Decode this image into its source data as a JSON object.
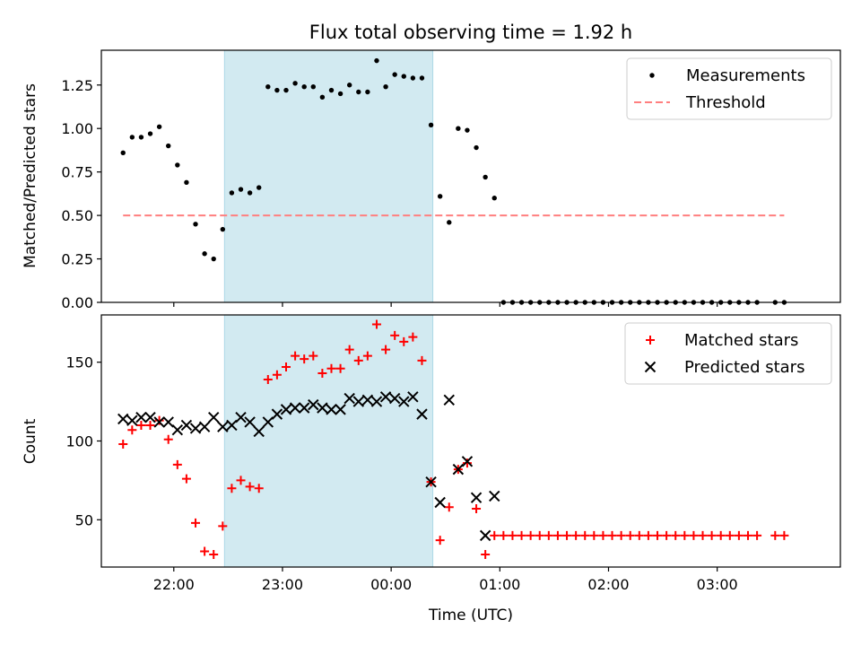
{
  "chart_data": [
    {
      "type": "scatter",
      "title": "Flux total observing time = 1.92 h",
      "ylabel": "Matched/Predicted stars",
      "xlim": [
        "21:20",
        "04:08"
      ],
      "ylim": [
        0,
        1.45
      ],
      "yticks": [
        "0.00",
        "0.25",
        "0.50",
        "0.75",
        "1.00",
        "1.25"
      ],
      "shaded_interval": [
        "22:28",
        "00:23"
      ],
      "shade_color": "#add8e6",
      "legend_position": "top-right",
      "series": [
        {
          "name": "Measurements",
          "marker": "dot",
          "color": "#000000",
          "points": [
            [
              "21:32",
              0.86
            ],
            [
              "21:37",
              0.95
            ],
            [
              "21:42",
              0.95
            ],
            [
              "21:47",
              0.97
            ],
            [
              "21:52",
              1.01
            ],
            [
              "21:57",
              0.9
            ],
            [
              "22:02",
              0.79
            ],
            [
              "22:07",
              0.69
            ],
            [
              "22:12",
              0.45
            ],
            [
              "22:17",
              0.28
            ],
            [
              "22:22",
              0.25
            ],
            [
              "22:27",
              0.42
            ],
            [
              "22:32",
              0.63
            ],
            [
              "22:37",
              0.65
            ],
            [
              "22:42",
              0.63
            ],
            [
              "22:47",
              0.66
            ],
            [
              "22:52",
              1.24
            ],
            [
              "22:57",
              1.22
            ],
            [
              "23:02",
              1.22
            ],
            [
              "23:07",
              1.26
            ],
            [
              "23:12",
              1.24
            ],
            [
              "23:17",
              1.24
            ],
            [
              "23:22",
              1.18
            ],
            [
              "23:27",
              1.22
            ],
            [
              "23:32",
              1.2
            ],
            [
              "23:37",
              1.25
            ],
            [
              "23:42",
              1.21
            ],
            [
              "23:47",
              1.21
            ],
            [
              "23:52",
              1.39
            ],
            [
              "23:57",
              1.24
            ],
            [
              "00:02",
              1.31
            ],
            [
              "00:07",
              1.3
            ],
            [
              "00:12",
              1.29
            ],
            [
              "00:17",
              1.29
            ],
            [
              "00:22",
              1.02
            ],
            [
              "00:27",
              0.61
            ],
            [
              "00:32",
              0.46
            ],
            [
              "00:37",
              1.0
            ],
            [
              "00:42",
              0.99
            ],
            [
              "00:47",
              0.89
            ],
            [
              "00:52",
              0.72
            ],
            [
              "00:57",
              0.6
            ],
            [
              "01:02",
              0
            ],
            [
              "01:07",
              0
            ],
            [
              "01:12",
              0
            ],
            [
              "01:17",
              0
            ],
            [
              "01:22",
              0
            ],
            [
              "01:27",
              0
            ],
            [
              "01:32",
              0
            ],
            [
              "01:37",
              0
            ],
            [
              "01:42",
              0
            ],
            [
              "01:47",
              0
            ],
            [
              "01:52",
              0
            ],
            [
              "01:57",
              0
            ],
            [
              "02:02",
              0
            ],
            [
              "02:07",
              0
            ],
            [
              "02:12",
              0
            ],
            [
              "02:17",
              0
            ],
            [
              "02:22",
              0
            ],
            [
              "02:27",
              0
            ],
            [
              "02:32",
              0
            ],
            [
              "02:37",
              0
            ],
            [
              "02:42",
              0
            ],
            [
              "02:47",
              0
            ],
            [
              "02:52",
              0
            ],
            [
              "02:57",
              0
            ],
            [
              "03:02",
              0
            ],
            [
              "03:07",
              0
            ],
            [
              "03:12",
              0
            ],
            [
              "03:17",
              0
            ],
            [
              "03:22",
              0
            ],
            [
              "03:32",
              0
            ],
            [
              "03:37",
              0
            ]
          ]
        },
        {
          "name": "Threshold",
          "type": "line",
          "style": "dashed",
          "color": "#ff7f7f",
          "points": [
            [
              "21:32",
              0.5
            ],
            [
              "03:37",
              0.5
            ]
          ]
        }
      ]
    },
    {
      "type": "scatter",
      "xlabel": "Time (UTC)",
      "ylabel": "Count",
      "xlim": [
        "21:20",
        "04:08"
      ],
      "ylim": [
        20,
        180
      ],
      "yticks": [
        "50",
        "100",
        "150"
      ],
      "xticks": [
        "22:00",
        "23:00",
        "00:00",
        "01:00",
        "02:00",
        "03:00"
      ],
      "shaded_interval": [
        "22:28",
        "00:23"
      ],
      "shade_color": "#add8e6",
      "legend_position": "top-right",
      "series": [
        {
          "name": "Matched stars",
          "marker": "plus",
          "color": "#ff0000",
          "points": [
            [
              "21:32",
              98
            ],
            [
              "21:37",
              107
            ],
            [
              "21:42",
              110
            ],
            [
              "21:47",
              110
            ],
            [
              "21:52",
              113
            ],
            [
              "21:57",
              101
            ],
            [
              "22:02",
              85
            ],
            [
              "22:07",
              76
            ],
            [
              "22:12",
              48
            ],
            [
              "22:17",
              30
            ],
            [
              "22:22",
              28
            ],
            [
              "22:27",
              46
            ],
            [
              "22:32",
              70
            ],
            [
              "22:37",
              75
            ],
            [
              "22:42",
              71
            ],
            [
              "22:47",
              70
            ],
            [
              "22:52",
              139
            ],
            [
              "22:57",
              142
            ],
            [
              "23:02",
              147
            ],
            [
              "23:07",
              154
            ],
            [
              "23:12",
              152
            ],
            [
              "23:17",
              154
            ],
            [
              "23:22",
              143
            ],
            [
              "23:27",
              146
            ],
            [
              "23:32",
              146
            ],
            [
              "23:37",
              158
            ],
            [
              "23:42",
              151
            ],
            [
              "23:47",
              154
            ],
            [
              "23:52",
              174
            ],
            [
              "23:57",
              158
            ],
            [
              "00:02",
              167
            ],
            [
              "00:07",
              163
            ],
            [
              "00:12",
              166
            ],
            [
              "00:17",
              151
            ],
            [
              "00:22",
              74
            ],
            [
              "00:27",
              37
            ],
            [
              "00:32",
              58
            ],
            [
              "00:37",
              82
            ],
            [
              "00:42",
              86
            ],
            [
              "00:47",
              57
            ],
            [
              "00:52",
              28
            ],
            [
              "00:57",
              40
            ],
            [
              "01:02",
              40
            ],
            [
              "01:07",
              40
            ],
            [
              "01:12",
              40
            ],
            [
              "01:17",
              40
            ],
            [
              "01:22",
              40
            ],
            [
              "01:27",
              40
            ],
            [
              "01:32",
              40
            ],
            [
              "01:37",
              40
            ],
            [
              "01:42",
              40
            ],
            [
              "01:47",
              40
            ],
            [
              "01:52",
              40
            ],
            [
              "01:57",
              40
            ],
            [
              "02:02",
              40
            ],
            [
              "02:07",
              40
            ],
            [
              "02:12",
              40
            ],
            [
              "02:17",
              40
            ],
            [
              "02:22",
              40
            ],
            [
              "02:27",
              40
            ],
            [
              "02:32",
              40
            ],
            [
              "02:37",
              40
            ],
            [
              "02:42",
              40
            ],
            [
              "02:47",
              40
            ],
            [
              "02:52",
              40
            ],
            [
              "02:57",
              40
            ],
            [
              "03:02",
              40
            ],
            [
              "03:07",
              40
            ],
            [
              "03:12",
              40
            ],
            [
              "03:17",
              40
            ],
            [
              "03:22",
              40
            ],
            [
              "03:32",
              40
            ],
            [
              "03:37",
              40
            ]
          ]
        },
        {
          "name": "Predicted stars",
          "marker": "x",
          "color": "#000000",
          "points": [
            [
              "21:32",
              114
            ],
            [
              "21:37",
              113
            ],
            [
              "21:42",
              115
            ],
            [
              "21:47",
              115
            ],
            [
              "21:52",
              112
            ],
            [
              "21:57",
              112
            ],
            [
              "22:02",
              107
            ],
            [
              "22:07",
              110
            ],
            [
              "22:12",
              108
            ],
            [
              "22:17",
              109
            ],
            [
              "22:22",
              115
            ],
            [
              "22:27",
              109
            ],
            [
              "22:32",
              110
            ],
            [
              "22:37",
              115
            ],
            [
              "22:42",
              112
            ],
            [
              "22:47",
              106
            ],
            [
              "22:52",
              112
            ],
            [
              "22:57",
              117
            ],
            [
              "23:02",
              120
            ],
            [
              "23:07",
              121
            ],
            [
              "23:12",
              121
            ],
            [
              "23:17",
              123
            ],
            [
              "23:22",
              121
            ],
            [
              "23:27",
              120
            ],
            [
              "23:32",
              120
            ],
            [
              "23:37",
              127
            ],
            [
              "23:42",
              125
            ],
            [
              "23:47",
              126
            ],
            [
              "23:52",
              125
            ],
            [
              "23:57",
              128
            ],
            [
              "00:02",
              127
            ],
            [
              "00:07",
              125
            ],
            [
              "00:12",
              128
            ],
            [
              "00:17",
              117
            ],
            [
              "00:22",
              74
            ],
            [
              "00:27",
              61
            ],
            [
              "00:32",
              126
            ],
            [
              "00:37",
              82
            ],
            [
              "00:42",
              87
            ],
            [
              "00:47",
              64
            ],
            [
              "00:52",
              40
            ],
            [
              "00:57",
              65
            ]
          ]
        }
      ]
    }
  ]
}
